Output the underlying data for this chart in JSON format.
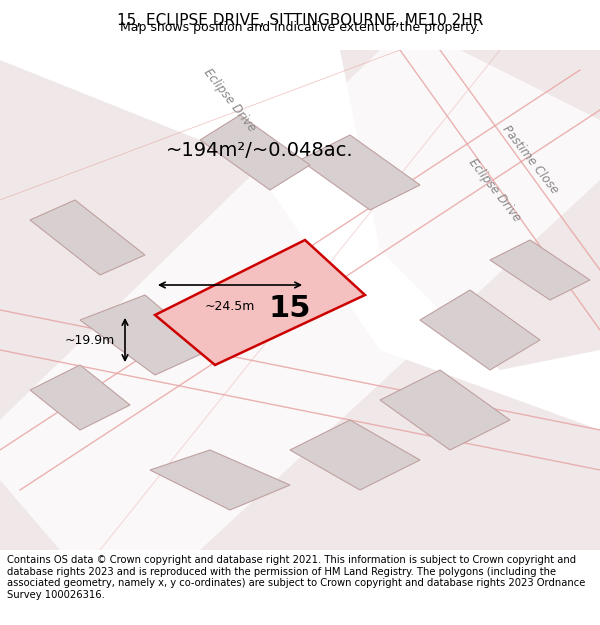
{
  "title": "15, ECLIPSE DRIVE, SITTINGBOURNE, ME10 2HR",
  "subtitle": "Map shows position and indicative extent of the property.",
  "footer": "Contains OS data © Crown copyright and database right 2021. This information is subject to Crown copyright and database rights 2023 and is reproduced with the permission of HM Land Registry. The polygons (including the associated geometry, namely x, y co-ordinates) are subject to Crown copyright and database rights 2023 Ordnance Survey 100026316.",
  "area_text": "~194m²/~0.048ac.",
  "map_bg": "#f5f0f0",
  "road_fill": "#ffffff",
  "plot_outline_color": "#cc0000",
  "plot_fill_color": "#f5c0c0",
  "building_fill": "#d8d0d0",
  "building_stroke": "#c0a0a0",
  "road_label1": "Eclipse Drive",
  "road_label2": "Eclipse Drive",
  "road_label3": "Pastime Close",
  "plot_number": "15",
  "dim_width": "~24.5m",
  "dim_height": "~19.9m",
  "title_fontsize": 11,
  "subtitle_fontsize": 9,
  "footer_fontsize": 7.2
}
